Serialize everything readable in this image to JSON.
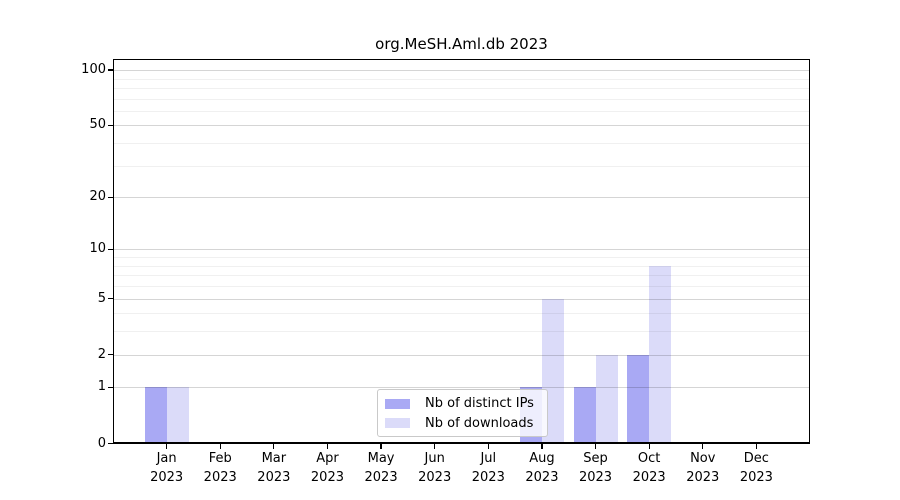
{
  "figure": {
    "title": "org.MeSH.Aml.db 2023"
  },
  "colors": {
    "distinct_ips_bar": "#a9a9f4",
    "downloads_bar": "#dbdbf9",
    "grid_major": "#d4d4d4",
    "grid_minor": "#efefef",
    "axis": "#000000"
  },
  "chart_data": {
    "type": "bar",
    "title": "org.MeSH.Aml.db 2023",
    "categories": [
      "Jan 2023",
      "Feb 2023",
      "Mar 2023",
      "Apr 2023",
      "May 2023",
      "Jun 2023",
      "Jul 2023",
      "Aug 2023",
      "Sep 2023",
      "Oct 2023",
      "Nov 2023",
      "Dec 2023"
    ],
    "x_tick_labels": [
      {
        "month": "Jan",
        "year": "2023"
      },
      {
        "month": "Feb",
        "year": "2023"
      },
      {
        "month": "Mar",
        "year": "2023"
      },
      {
        "month": "Apr",
        "year": "2023"
      },
      {
        "month": "May",
        "year": "2023"
      },
      {
        "month": "Jun",
        "year": "2023"
      },
      {
        "month": "Jul",
        "year": "2023"
      },
      {
        "month": "Aug",
        "year": "2023"
      },
      {
        "month": "Sep",
        "year": "2023"
      },
      {
        "month": "Oct",
        "year": "2023"
      },
      {
        "month": "Nov",
        "year": "2023"
      },
      {
        "month": "Dec",
        "year": "2023"
      }
    ],
    "series": [
      {
        "name": "Nb of distinct IPs",
        "color": "#a9a9f4",
        "values": [
          1,
          0,
          0,
          0,
          0,
          0,
          0,
          1,
          1,
          2,
          0,
          0
        ]
      },
      {
        "name": "Nb of downloads",
        "color": "#dbdbf9",
        "values": [
          1,
          0,
          0,
          0,
          0,
          0,
          0,
          5,
          2,
          8,
          0,
          0
        ]
      }
    ],
    "y_axis": {
      "scale": "log1p",
      "tick_values": [
        0,
        1,
        2,
        5,
        10,
        20,
        50,
        100
      ],
      "tick_labels": [
        "0",
        "1",
        "2",
        "5",
        "10",
        "20",
        "50",
        "100"
      ],
      "minor_gridline_values": [
        3,
        4,
        6,
        7,
        8,
        9,
        30,
        40,
        60,
        70,
        80,
        90
      ],
      "ylim": [
        0,
        100
      ]
    },
    "legend": {
      "position": "inside-bottom-center",
      "items": [
        "Nb of distinct IPs",
        "Nb of downloads"
      ]
    },
    "grid": true
  }
}
